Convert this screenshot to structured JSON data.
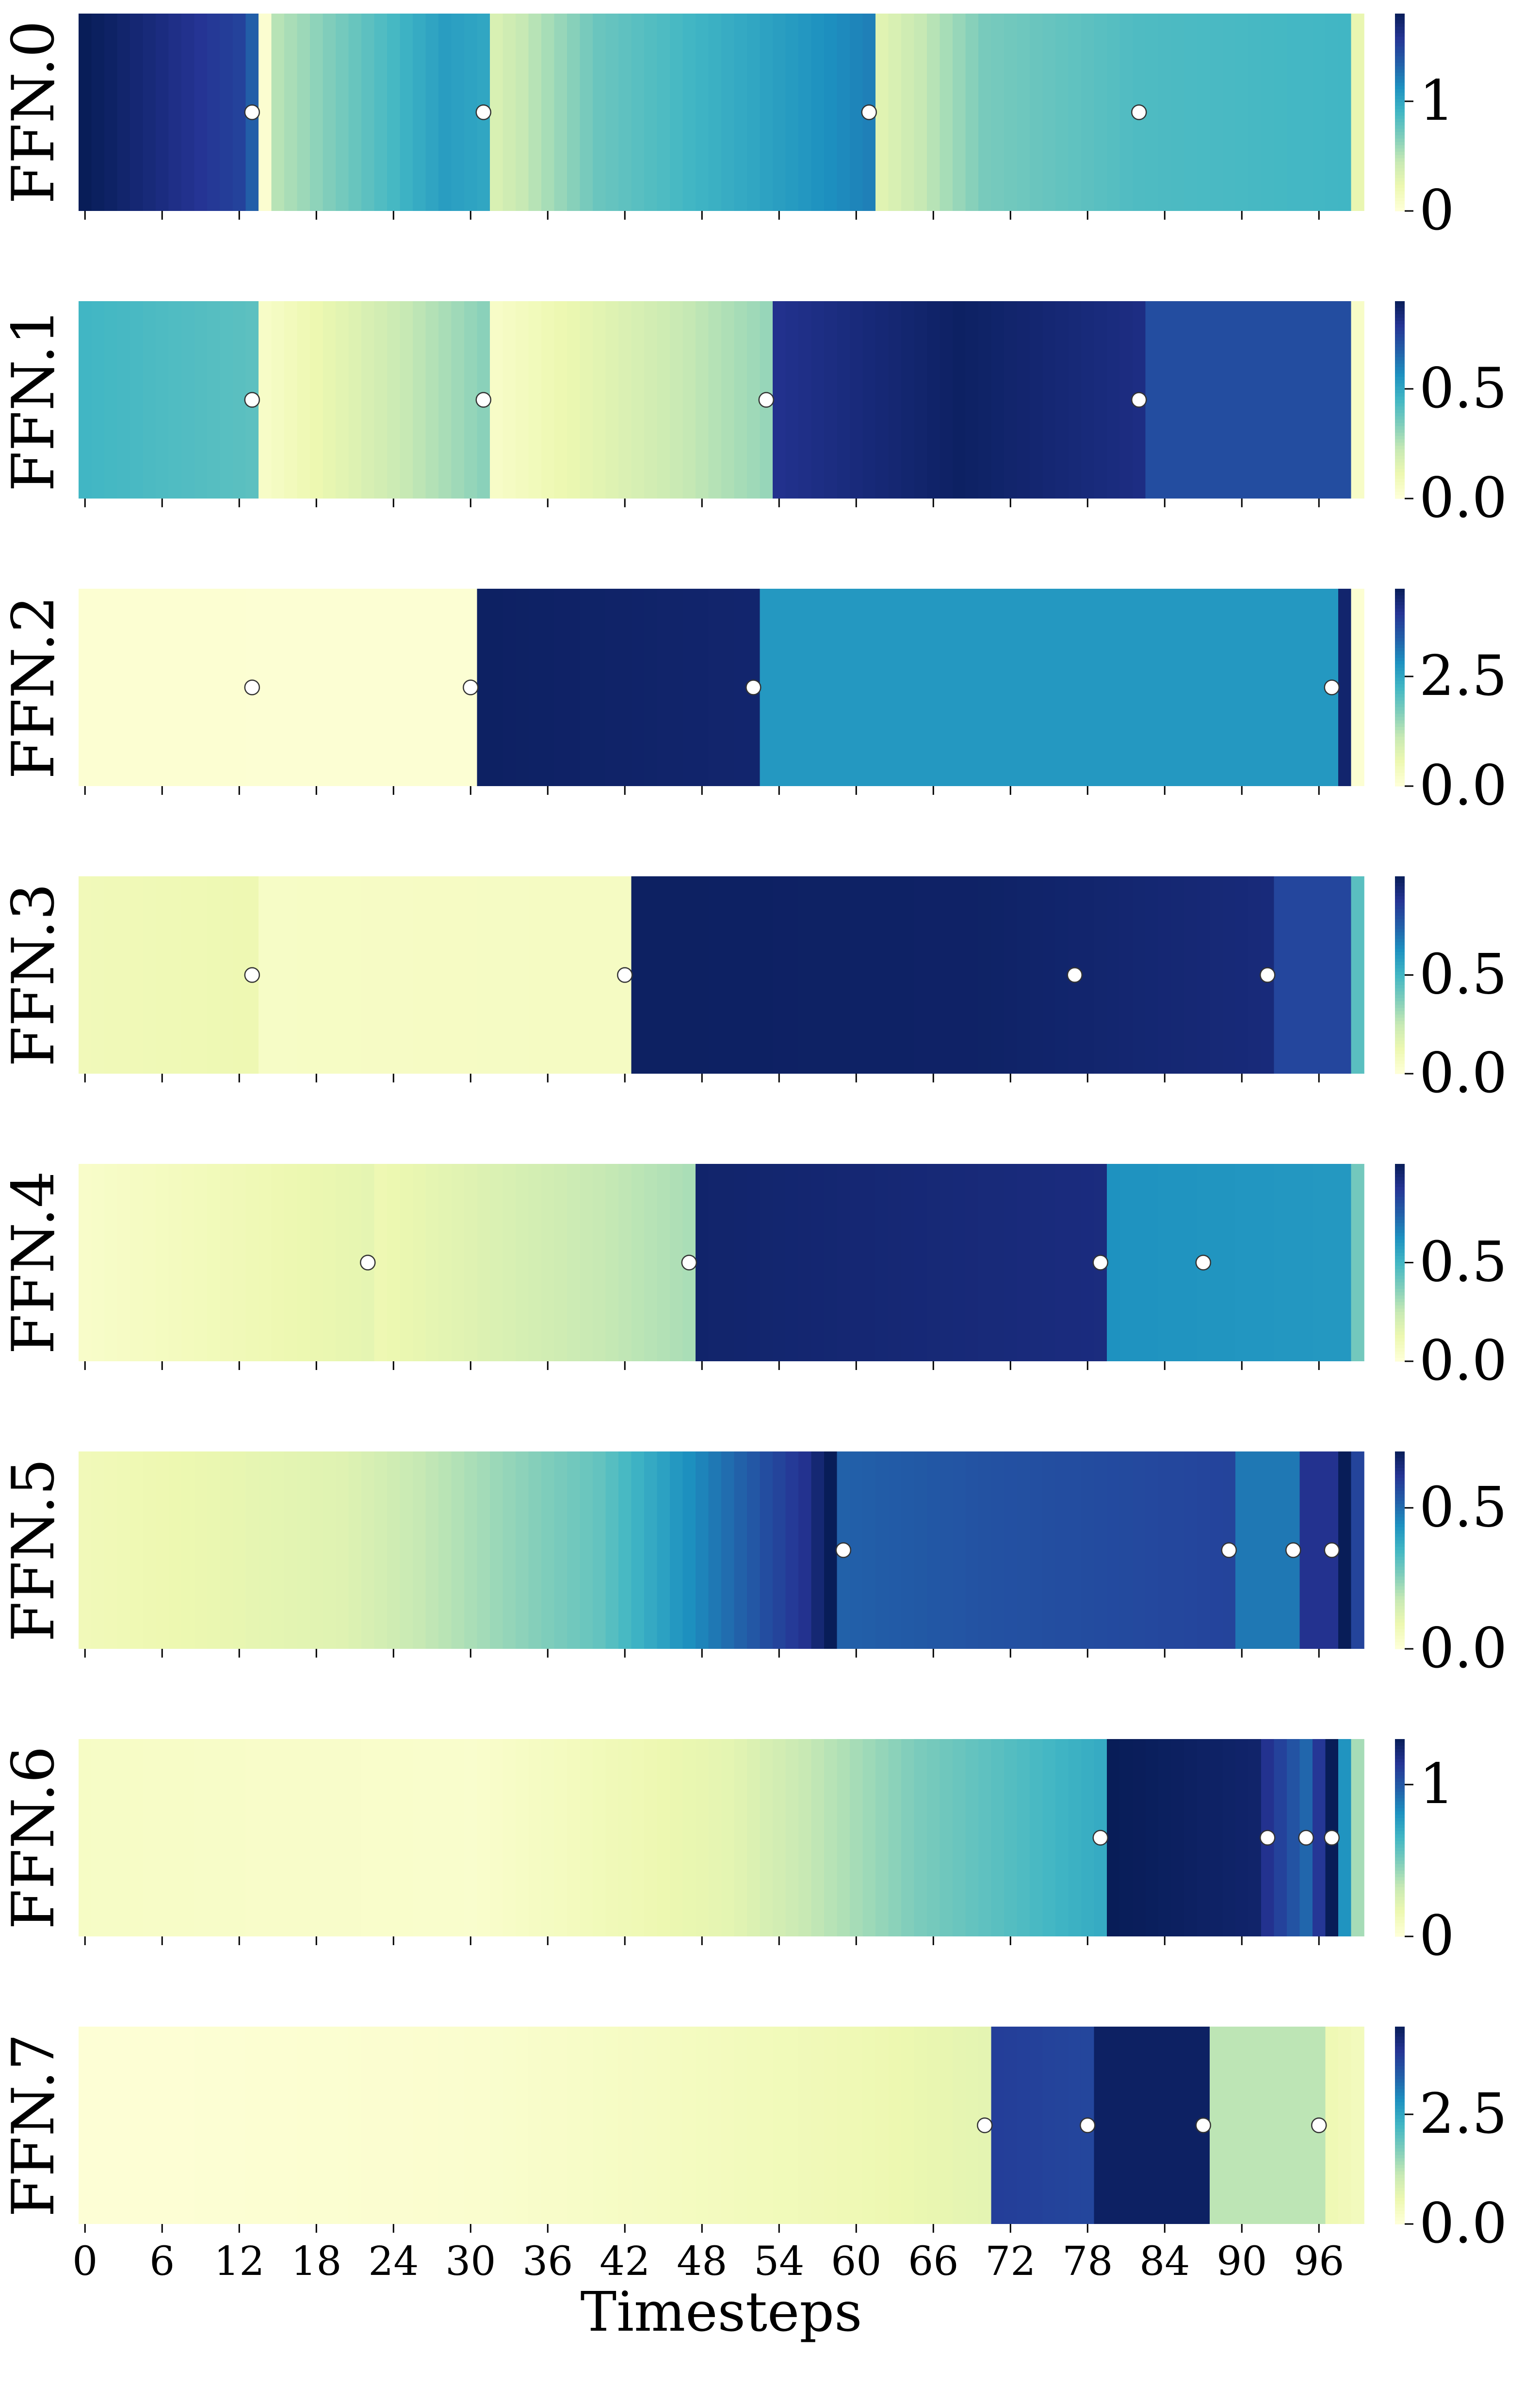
{
  "chart_data": {
    "type": "heatmap",
    "figure": "Per-layer FFN heatmaps over denoising timesteps",
    "xlabel": "Timesteps",
    "x_range": [
      0,
      99
    ],
    "x_ticks": [
      0,
      6,
      12,
      18,
      24,
      30,
      36,
      42,
      48,
      54,
      60,
      66,
      72,
      78,
      84,
      90,
      96
    ],
    "x_tick_labels": [
      "0",
      "6",
      "12",
      "18",
      "24",
      "30",
      "36",
      "42",
      "48",
      "54",
      "60",
      "66",
      "72",
      "78",
      "84",
      "90",
      "96"
    ],
    "colormap": "YlGnBu",
    "panels": [
      {
        "label": "FFN.0",
        "vmin": 0,
        "vmax": 1.8,
        "colorbar_ticks": [
          0,
          1
        ],
        "colorbar_tick_labels": [
          "0",
          "1"
        ],
        "control_points": [
          [
            0,
            1.8
          ],
          [
            12,
            1.5
          ],
          [
            13,
            1.35
          ],
          [
            14,
            0.05
          ],
          [
            15,
            0.5
          ],
          [
            22,
            0.8
          ],
          [
            28,
            1.05
          ],
          [
            31,
            1.0
          ],
          [
            32,
            0.35
          ],
          [
            40,
            0.75
          ],
          [
            52,
            1.0
          ],
          [
            61,
            1.2
          ],
          [
            62,
            0.3
          ],
          [
            70,
            0.7
          ],
          [
            82,
            0.85
          ],
          [
            98,
            0.9
          ],
          [
            99,
            0.25
          ]
        ],
        "markers": [
          13,
          31,
          61,
          82
        ]
      },
      {
        "label": "FFN.1",
        "vmin": 0,
        "vmax": 0.9,
        "colorbar_ticks": [
          0,
          0.5
        ],
        "colorbar_tick_labels": [
          "0.0",
          "0.5"
        ],
        "control_points": [
          [
            0,
            0.45
          ],
          [
            13,
            0.4
          ],
          [
            14,
            0.05
          ],
          [
            31,
            0.32
          ],
          [
            32,
            0.05
          ],
          [
            53,
            0.3
          ],
          [
            54,
            0.8
          ],
          [
            68,
            0.88
          ],
          [
            82,
            0.82
          ],
          [
            83,
            0.72
          ],
          [
            98,
            0.72
          ],
          [
            99,
            0.05
          ]
        ],
        "markers": [
          13,
          31,
          53,
          82
        ]
      },
      {
        "label": "FFN.2",
        "vmin": 0,
        "vmax": 4.5,
        "colorbar_ticks": [
          0,
          2.5
        ],
        "colorbar_tick_labels": [
          "0.0",
          "2.5"
        ],
        "control_points": [
          [
            0,
            0.1
          ],
          [
            30,
            0.08
          ],
          [
            31,
            4.4
          ],
          [
            52,
            4.3
          ],
          [
            53,
            2.7
          ],
          [
            97,
            2.7
          ],
          [
            98,
            4.3
          ],
          [
            99,
            0.1
          ]
        ],
        "markers": [
          13,
          30,
          52,
          97
        ]
      },
      {
        "label": "FFN.3",
        "vmin": 0,
        "vmax": 1.0,
        "colorbar_ticks": [
          0,
          0.5
        ],
        "colorbar_tick_labels": [
          "0.0",
          "0.5"
        ],
        "control_points": [
          [
            0,
            0.1
          ],
          [
            13,
            0.12
          ],
          [
            14,
            0.06
          ],
          [
            42,
            0.07
          ],
          [
            43,
            0.98
          ],
          [
            70,
            0.97
          ],
          [
            92,
            0.93
          ],
          [
            93,
            0.82
          ],
          [
            98,
            0.82
          ],
          [
            99,
            0.45
          ]
        ],
        "markers": [
          13,
          42,
          77,
          92
        ]
      },
      {
        "label": "FFN.4",
        "vmin": 0,
        "vmax": 1.0,
        "colorbar_ticks": [
          0,
          0.5
        ],
        "colorbar_tick_labels": [
          "0.0",
          "0.5"
        ],
        "control_points": [
          [
            0,
            0.05
          ],
          [
            22,
            0.15
          ],
          [
            23,
            0.12
          ],
          [
            47,
            0.3
          ],
          [
            48,
            0.96
          ],
          [
            79,
            0.92
          ],
          [
            80,
            0.62
          ],
          [
            98,
            0.6
          ],
          [
            99,
            0.4
          ]
        ],
        "markers": [
          22,
          47,
          79,
          87
        ]
      },
      {
        "label": "FFN.5",
        "vmin": 0,
        "vmax": 0.7,
        "colorbar_ticks": [
          0,
          0.5
        ],
        "colorbar_tick_labels": [
          "0.0",
          "0.5"
        ],
        "control_points": [
          [
            0,
            0.07
          ],
          [
            20,
            0.12
          ],
          [
            40,
            0.3
          ],
          [
            50,
            0.5
          ],
          [
            56,
            0.62
          ],
          [
            58,
            0.7
          ],
          [
            59,
            0.52
          ],
          [
            70,
            0.55
          ],
          [
            89,
            0.58
          ],
          [
            90,
            0.48
          ],
          [
            94,
            0.48
          ],
          [
            95,
            0.62
          ],
          [
            97,
            0.62
          ],
          [
            98,
            0.7
          ],
          [
            99,
            0.58
          ]
        ],
        "markers": [
          59,
          89,
          94,
          97
        ]
      },
      {
        "label": "FFN.6",
        "vmin": 0,
        "vmax": 1.3,
        "colorbar_ticks": [
          0,
          1
        ],
        "colorbar_tick_labels": [
          "0",
          "1"
        ],
        "control_points": [
          [
            0,
            0.08
          ],
          [
            30,
            0.05
          ],
          [
            50,
            0.2
          ],
          [
            65,
            0.5
          ],
          [
            79,
            0.7
          ],
          [
            80,
            1.3
          ],
          [
            91,
            1.25
          ],
          [
            92,
            1.15
          ],
          [
            95,
            0.95
          ],
          [
            97,
            1.3
          ],
          [
            98,
            0.8
          ],
          [
            99,
            0.4
          ]
        ],
        "markers": [
          79,
          92,
          95,
          97
        ]
      },
      {
        "label": "FFN.7",
        "vmin": 0,
        "vmax": 4.5,
        "colorbar_ticks": [
          0,
          2.5
        ],
        "colorbar_tick_labels": [
          "0.0",
          "2.5"
        ],
        "control_points": [
          [
            0,
            0.05
          ],
          [
            30,
            0.15
          ],
          [
            60,
            0.5
          ],
          [
            70,
            0.7
          ],
          [
            71,
            3.8
          ],
          [
            78,
            3.7
          ],
          [
            79,
            4.4
          ],
          [
            87,
            4.4
          ],
          [
            88,
            1.2
          ],
          [
            96,
            1.2
          ],
          [
            97,
            0.5
          ],
          [
            99,
            0.4
          ]
        ],
        "markers": [
          70,
          78,
          87,
          96
        ]
      }
    ]
  }
}
